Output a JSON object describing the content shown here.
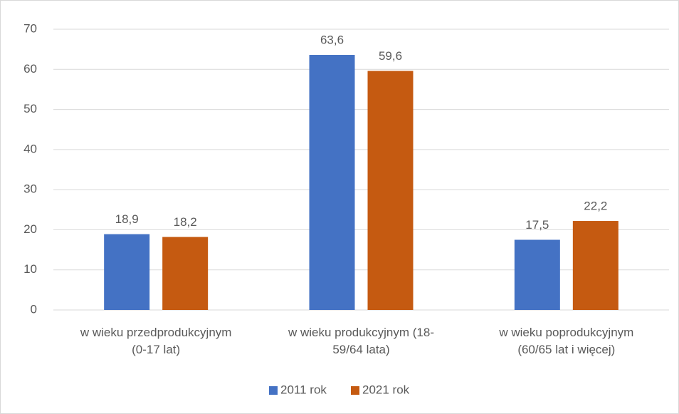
{
  "chart_data": {
    "type": "bar",
    "categories": [
      "w wieku przedprodukcyjnym\n(0-17 lat)",
      "w wieku produkcyjnym (18-\n59/64 lata)",
      "w wieku poprodukcyjnym\n(60/65 lat i więcej)"
    ],
    "series": [
      {
        "name": "2011 rok",
        "color": "#4472c4",
        "values": [
          18.9,
          63.6,
          17.5
        ],
        "value_labels": [
          "18,9",
          "63,6",
          "17,5"
        ]
      },
      {
        "name": "2021 rok",
        "color": "#c55a11",
        "values": [
          18.2,
          59.6,
          22.2
        ],
        "value_labels": [
          "18,2",
          "59,6",
          "22,2"
        ]
      }
    ],
    "ylim": [
      0,
      70
    ],
    "yticks": [
      0,
      10,
      20,
      30,
      40,
      50,
      60,
      70
    ],
    "grid": true,
    "legend": "bottom"
  }
}
